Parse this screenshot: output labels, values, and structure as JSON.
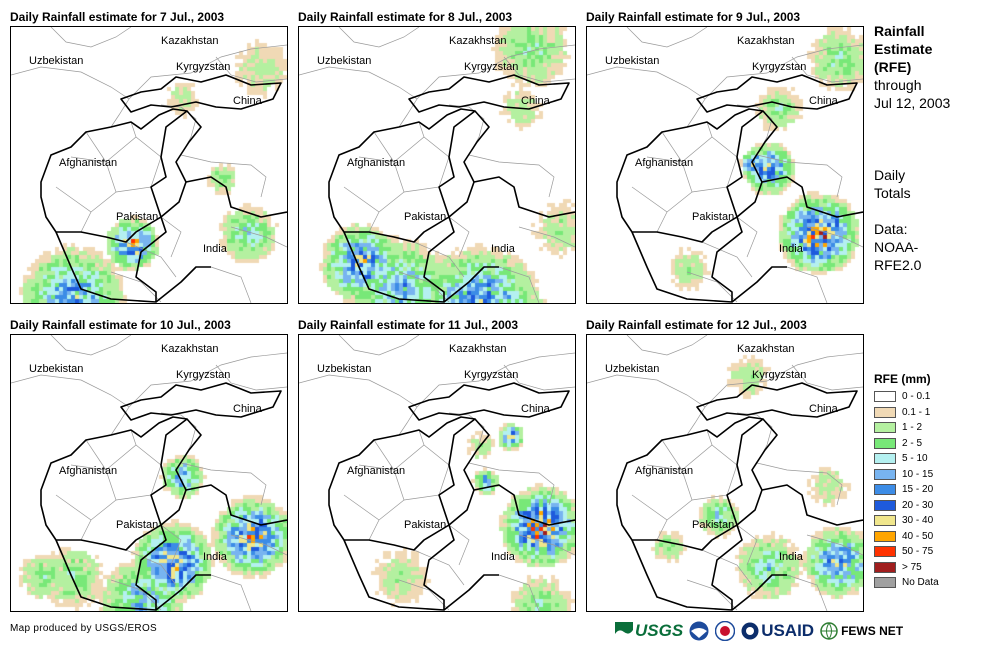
{
  "panels": [
    {
      "title": "Daily Rainfall estimate for 7 Jul., 2003",
      "seed": 7,
      "centers": [
        [
          170,
          70,
          25,
          2
        ],
        [
          120,
          215,
          30,
          8
        ],
        [
          235,
          205,
          35,
          4
        ],
        [
          60,
          270,
          60,
          6
        ],
        [
          250,
          40,
          40,
          2
        ],
        [
          210,
          150,
          20,
          3
        ]
      ]
    },
    {
      "title": "Daily Rainfall estimate for 8 Jul., 2003",
      "seed": 8,
      "centers": [
        [
          230,
          20,
          50,
          3
        ],
        [
          60,
          235,
          45,
          7
        ],
        [
          180,
          280,
          70,
          7
        ],
        [
          100,
          260,
          60,
          5
        ],
        [
          260,
          200,
          40,
          2
        ],
        [
          220,
          80,
          30,
          2
        ]
      ]
    },
    {
      "title": "Daily Rainfall estimate for 9 Jul., 2003",
      "seed": 9,
      "centers": [
        [
          230,
          205,
          45,
          9
        ],
        [
          180,
          140,
          30,
          7
        ],
        [
          190,
          80,
          30,
          3
        ],
        [
          100,
          240,
          30,
          2
        ],
        [
          250,
          30,
          40,
          3
        ],
        [
          165,
          135,
          15,
          8
        ]
      ]
    },
    {
      "title": "Daily Rainfall estimate for 10 Jul., 2003",
      "seed": 10,
      "centers": [
        [
          240,
          200,
          45,
          8
        ],
        [
          160,
          225,
          45,
          8
        ],
        [
          130,
          265,
          50,
          5
        ],
        [
          170,
          140,
          25,
          6
        ],
        [
          60,
          240,
          40,
          3
        ],
        [
          30,
          240,
          30,
          3
        ]
      ]
    },
    {
      "title": "Daily Rainfall estimate for 11 Jul., 2003",
      "seed": 11,
      "centers": [
        [
          240,
          190,
          45,
          9
        ],
        [
          210,
          100,
          15,
          7
        ],
        [
          180,
          110,
          20,
          2
        ],
        [
          100,
          240,
          40,
          2
        ],
        [
          240,
          270,
          40,
          3
        ],
        [
          185,
          145,
          15,
          6
        ]
      ]
    },
    {
      "title": "Daily Rainfall estimate for 12 Jul., 2003",
      "seed": 12,
      "centers": [
        [
          250,
          225,
          40,
          7
        ],
        [
          180,
          230,
          40,
          4
        ],
        [
          130,
          180,
          25,
          4
        ],
        [
          240,
          150,
          30,
          2
        ],
        [
          160,
          40,
          30,
          2
        ],
        [
          80,
          210,
          20,
          3
        ]
      ]
    }
  ],
  "countries": {
    "kazakhstan": "Kazakhstan",
    "uzbekistan": "Uzbekistan",
    "kyrgyzstan": "Kyrgyzstan",
    "china": "China",
    "afghanistan": "Afghanistan",
    "pakistan": "Pakistan",
    "india": "India"
  },
  "side": {
    "title_line1": "Rainfall",
    "title_line2": "Estimate",
    "title_line3": "(RFE)",
    "through_line1": "through",
    "through_line2": "Jul 12, 2003",
    "totals_line1": "Daily",
    "totals_line2": "Totals",
    "source_line1": "Data:",
    "source_line2": "NOAA-",
    "source_line3": "RFE2.0"
  },
  "legend": {
    "title": "RFE (mm)",
    "items": [
      {
        "label": "0 - 0.1",
        "color": "#ffffff"
      },
      {
        "label": "0.1 - 1",
        "color": "#f0d9b5"
      },
      {
        "label": "1 - 2",
        "color": "#b4f0a0"
      },
      {
        "label": "2 - 5",
        "color": "#78e878"
      },
      {
        "label": "5 - 10",
        "color": "#b4f0f0"
      },
      {
        "label": "10 - 15",
        "color": "#78b4f0"
      },
      {
        "label": "15 - 20",
        "color": "#3c8ce6"
      },
      {
        "label": "20 - 30",
        "color": "#1e5adc"
      },
      {
        "label": "30 - 40",
        "color": "#f0e68c"
      },
      {
        "label": "40 - 50",
        "color": "#ffa500"
      },
      {
        "label": "50 - 75",
        "color": "#ff3200"
      },
      {
        "label": "> 75",
        "color": "#a01e1e"
      },
      {
        "label": "No Data",
        "color": "#a0a0a0"
      }
    ]
  },
  "footer": {
    "credit": "Map produced by USGS/EROS",
    "logos": {
      "usgs": "USGS",
      "usaid": "USAID",
      "fewsnet": "FEWS NET"
    }
  }
}
